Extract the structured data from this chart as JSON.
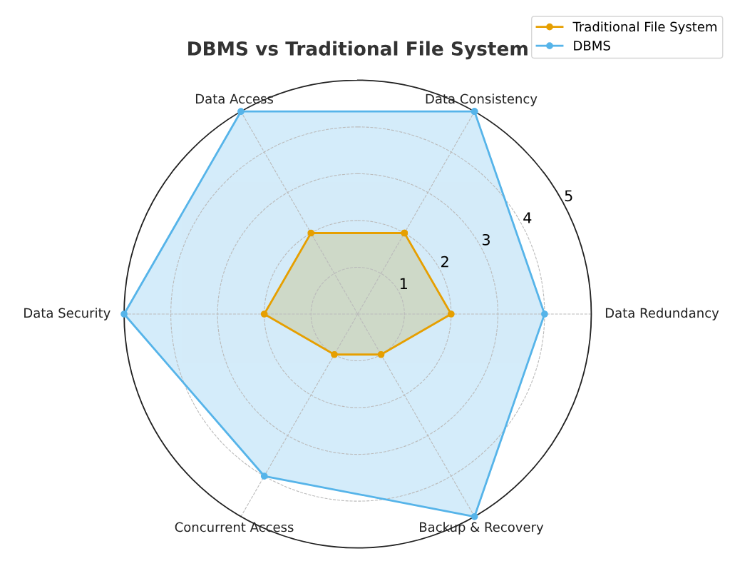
{
  "chart_data": {
    "type": "radar",
    "title": "DBMS vs Traditional File System",
    "categories": [
      "Data Consistency",
      "Data Redundancy",
      "Backup & Recovery",
      "Concurrent Access",
      "Data Security",
      "Data Access"
    ],
    "series": [
      {
        "name": "Traditional File System",
        "color": "#e69f00",
        "values": [
          2,
          2,
          1,
          1,
          2,
          2
        ]
      },
      {
        "name": "DBMS",
        "color": "#56b4e9",
        "values": [
          5,
          4,
          5,
          4,
          5,
          5
        ]
      }
    ],
    "ylim": [
      0,
      5
    ],
    "yticks": [
      1,
      2,
      3,
      4,
      5
    ],
    "grid": true,
    "legend": "top right",
    "marker": "circle"
  }
}
